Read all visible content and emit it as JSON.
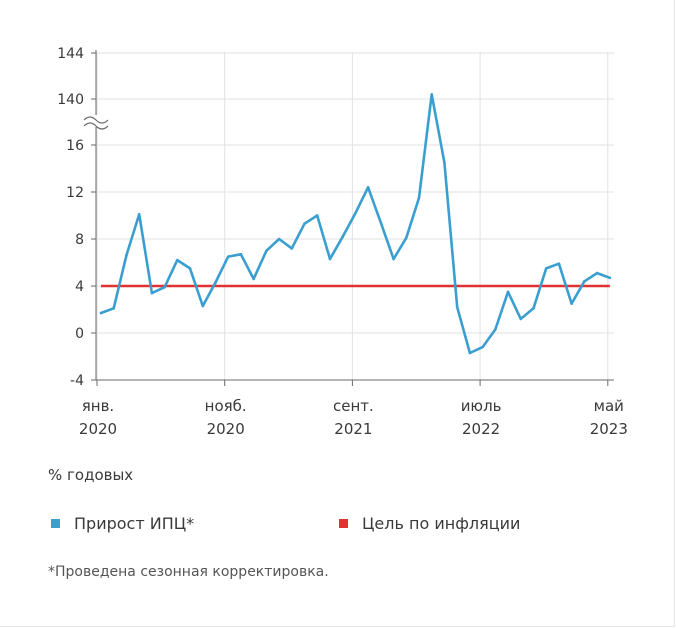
{
  "chart_data": {
    "type": "line",
    "unit": "% годовых",
    "y_axis": {
      "broken": true,
      "lower_range": [
        -4,
        16
      ],
      "upper_range": [
        140,
        144
      ],
      "tick_labels": [
        "144",
        "140",
        "16",
        "12",
        "8",
        "4",
        "0",
        "-4"
      ]
    },
    "x_axis": {
      "tick_labels": [
        {
          "month": "янв.",
          "year": "2020"
        },
        {
          "month": "нояб.",
          "year": "2020"
        },
        {
          "month": "сент.",
          "year": "2021"
        },
        {
          "month": "июль",
          "year": "2022"
        },
        {
          "month": "май",
          "year": "2023"
        }
      ]
    },
    "series": [
      {
        "name": "Прирост ИПЦ*",
        "color": "#3a9fd0",
        "start": "2020-01",
        "values": [
          1.7,
          2.1,
          6.6,
          10.1,
          3.4,
          3.9,
          6.2,
          5.5,
          2.3,
          4.3,
          6.5,
          6.7,
          4.6,
          7.0,
          8.0,
          7.2,
          9.3,
          10.0,
          6.3,
          8.2,
          10.2,
          12.4,
          9.4,
          6.3,
          8.1,
          11.5,
          140.4,
          14.5,
          2.2,
          -1.7,
          -1.2,
          0.3,
          3.5,
          1.2,
          2.1,
          5.5,
          5.9,
          2.5,
          4.4,
          5.1,
          4.7
        ]
      },
      {
        "name": "Цель по инфляции",
        "color": "#e03232",
        "value": 4
      }
    ]
  },
  "legend": {
    "cpi_label": "Прирост ИПЦ*",
    "target_label": "Цель по инфляции"
  },
  "footnote": "*Проведена сезонная корректировка."
}
